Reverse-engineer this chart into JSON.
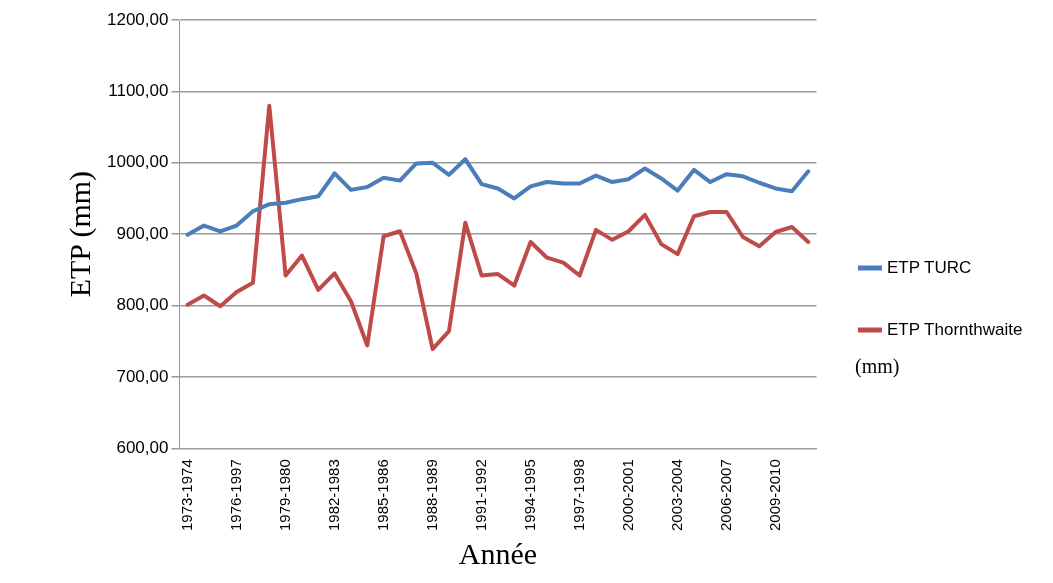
{
  "chart_data": {
    "type": "line",
    "xlabel": "Année",
    "ylabel": "ETP (mm)",
    "annotations": [
      "(mm)"
    ],
    "categories": [
      "1973-1974",
      null,
      null,
      "1976-1997",
      null,
      null,
      "1979-1980",
      null,
      null,
      "1982-1983",
      null,
      null,
      "1985-1986",
      null,
      null,
      "1988-1989",
      null,
      null,
      "1991-1992",
      null,
      null,
      "1994-1995",
      null,
      null,
      "1997-1998",
      null,
      null,
      "2000-2001",
      null,
      null,
      "2003-2004",
      null,
      null,
      "2006-2007",
      null,
      null,
      "2009-2010",
      null,
      null
    ],
    "series": [
      {
        "name": "ETP TURC",
        "color": "#4a7ebb",
        "values": [
          899,
          912,
          904,
          912,
          932,
          942,
          944,
          949,
          953,
          985,
          962,
          966,
          979,
          975,
          999,
          1000,
          983,
          1005,
          970,
          964,
          950,
          967,
          973,
          971,
          971,
          982,
          973,
          977,
          992,
          978,
          961,
          990,
          973,
          984,
          981,
          972,
          964,
          960,
          988
        ]
      },
      {
        "name": "ETP Thornthwaite",
        "color": "#be4b48",
        "values": [
          801,
          814,
          799,
          819,
          832,
          1080,
          842,
          870,
          822,
          845,
          806,
          744,
          897,
          904,
          845,
          739,
          764,
          916,
          842,
          844,
          828,
          889,
          867,
          860,
          842,
          906,
          892,
          904,
          927,
          886,
          872,
          925,
          931,
          931,
          896,
          883,
          903,
          910,
          889
        ]
      }
    ],
    "ylim": [
      600,
      1200
    ],
    "yticks": [
      {
        "value": 600,
        "label": "600,00"
      },
      {
        "value": 700,
        "label": "700,00"
      },
      {
        "value": 800,
        "label": "800,00"
      },
      {
        "value": 900,
        "label": "900,00"
      },
      {
        "value": 1000,
        "label": "1000,00"
      },
      {
        "value": 1100,
        "label": "1100,00"
      },
      {
        "value": 1200,
        "label": "1200,00"
      }
    ],
    "grid": "y",
    "legend": "right",
    "marker": "none",
    "line_style": "solid"
  }
}
